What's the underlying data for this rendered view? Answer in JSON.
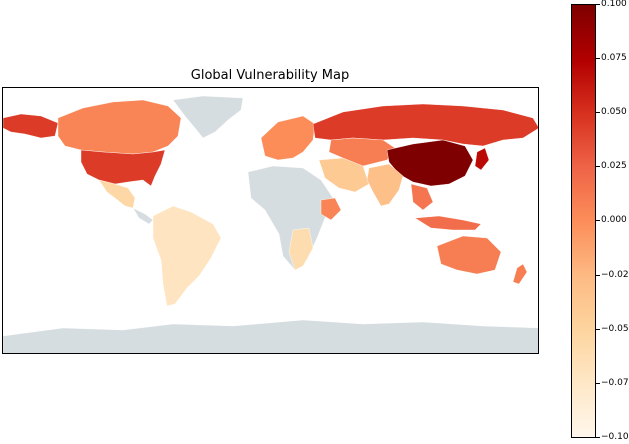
{
  "map": {
    "title": "Global Vulnerability Map",
    "no_data_color": "#d5dde0",
    "ocean_color": "#ffffff",
    "regions": [
      {
        "name": "United States",
        "value": 0.045
      },
      {
        "name": "Canada",
        "value": 0.005
      },
      {
        "name": "Alaska",
        "value": 0.045
      },
      {
        "name": "Mexico",
        "value": -0.055
      },
      {
        "name": "Greenland",
        "value": null
      },
      {
        "name": "South America",
        "value": -0.07
      },
      {
        "name": "Russia",
        "value": 0.045
      },
      {
        "name": "China",
        "value": 0.1
      },
      {
        "name": "Japan",
        "value": 0.07
      },
      {
        "name": "India",
        "value": -0.03
      },
      {
        "name": "Central Asia",
        "value": 0.01
      },
      {
        "name": "Middle East",
        "value": -0.04
      },
      {
        "name": "Europe",
        "value": 0.0
      },
      {
        "name": "Africa",
        "value": null
      },
      {
        "name": "Ethiopia",
        "value": 0.005
      },
      {
        "name": "Southern Africa",
        "value": -0.06
      },
      {
        "name": "Southeast Asia",
        "value": 0.015
      },
      {
        "name": "Indonesia",
        "value": 0.02
      },
      {
        "name": "Australia",
        "value": 0.01
      },
      {
        "name": "New Zealand",
        "value": 0.01
      },
      {
        "name": "Antarctica",
        "value": null
      }
    ]
  },
  "colorbar": {
    "min": -0.1,
    "max": 0.1,
    "colormap": [
      "#fff7ec",
      "#fee8c8",
      "#fdd49e",
      "#fdbb84",
      "#fc8d59",
      "#ef6548",
      "#d7301f",
      "#b30000",
      "#7f0000"
    ],
    "ticks": [
      "0.100",
      "0.075",
      "0.050",
      "0.025",
      "0.000",
      "−0.025",
      "−0.050",
      "−0.075",
      "−0.100"
    ]
  }
}
